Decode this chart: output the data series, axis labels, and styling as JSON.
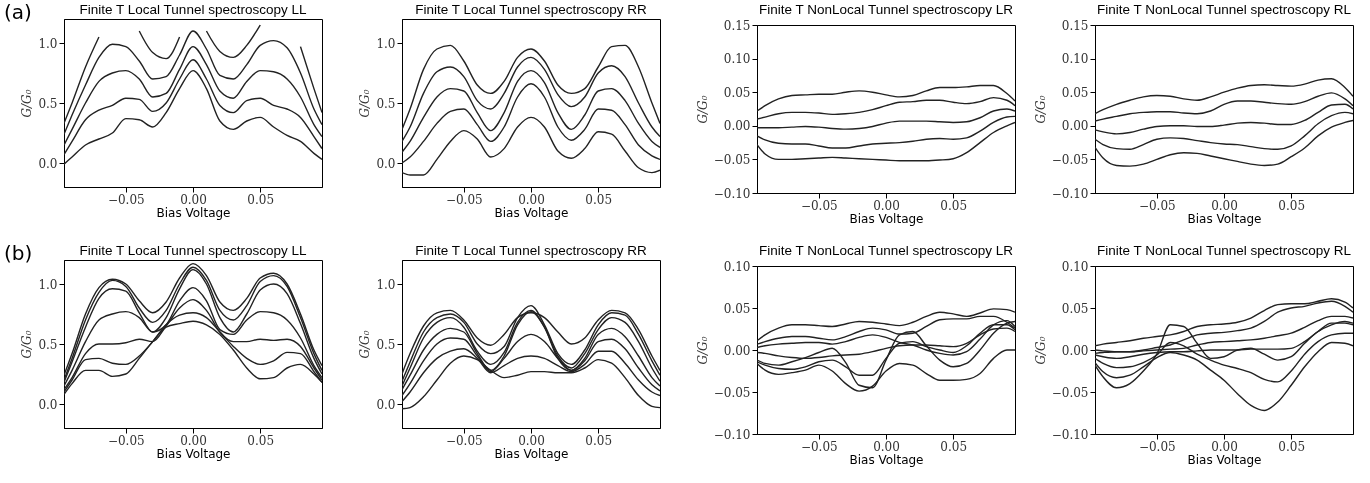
{
  "chart_data": [
    {
      "type": "line",
      "title": "Finite T Local Tunnel spectroscopy LL",
      "xlabel": "Bias Voltage",
      "ylabel": "G/G₀",
      "annotations": [
        "(a)"
      ],
      "x": [
        -0.096,
        -0.09,
        -0.08,
        -0.07,
        -0.06,
        -0.05,
        -0.04,
        -0.03,
        -0.02,
        -0.01,
        0,
        0.01,
        0.02,
        0.03,
        0.04,
        0.05,
        0.06,
        0.07,
        0.08,
        0.09,
        0.096
      ],
      "xlim": [
        -0.096,
        0.096
      ],
      "xticks": [
        {
          "value": -0.05,
          "label": "−0.05"
        },
        {
          "value": 0,
          "label": "0.00"
        },
        {
          "value": 0.05,
          "label": "0.05"
        }
      ],
      "ylim": [
        -0.2,
        1.2
      ],
      "yticks": [
        {
          "value": 0,
          "label": "0.0"
        },
        {
          "value": 0.5,
          "label": "0.5"
        },
        {
          "value": 1,
          "label": "1.0"
        }
      ],
      "series": [
        {
          "color": "#222222",
          "values": [
            0.33,
            0.5,
            0.8,
            1.05,
            null,
            null,
            1.1,
            0.92,
            0.87,
            1.05,
            null,
            1.1,
            0.93,
            0.88,
            0.98,
            1.15,
            null,
            null,
            0.97,
            0.62,
            0.42
          ]
        },
        {
          "color": "#222222",
          "values": [
            0.24,
            0.4,
            0.65,
            0.88,
            0.99,
            0.97,
            0.85,
            0.7,
            0.72,
            0.9,
            1.1,
            0.95,
            0.73,
            0.7,
            0.82,
            0.98,
            1.02,
            0.96,
            0.75,
            0.45,
            0.32
          ]
        },
        {
          "color": "#222222",
          "values": [
            0.15,
            0.28,
            0.5,
            0.68,
            0.75,
            0.77,
            0.7,
            0.55,
            0.58,
            0.78,
            0.97,
            0.82,
            0.6,
            0.54,
            0.68,
            0.77,
            0.76,
            0.7,
            0.55,
            0.32,
            0.22
          ]
        },
        {
          "color": "#222222",
          "values": [
            0.07,
            0.18,
            0.36,
            0.44,
            0.48,
            0.54,
            0.53,
            0.43,
            0.5,
            0.7,
            0.86,
            0.7,
            0.48,
            0.42,
            0.52,
            0.54,
            0.48,
            0.45,
            0.38,
            0.22,
            0.12
          ]
        },
        {
          "color": "#222222",
          "values": [
            -0.01,
            0.05,
            0.15,
            0.2,
            0.25,
            0.37,
            0.36,
            0.3,
            0.42,
            0.62,
            0.77,
            0.62,
            0.35,
            0.28,
            0.35,
            0.38,
            0.3,
            0.23,
            0.18,
            0.08,
            0.03
          ]
        }
      ]
    },
    {
      "type": "line",
      "title": "Finite T Local Tunnel spectroscopy RR",
      "xlabel": "Bias Voltage",
      "ylabel": "G/G₀",
      "x": [
        -0.096,
        -0.09,
        -0.08,
        -0.07,
        -0.06,
        -0.05,
        -0.04,
        -0.03,
        -0.02,
        -0.01,
        0,
        0.01,
        0.02,
        0.03,
        0.04,
        0.05,
        0.06,
        0.07,
        0.08,
        0.09,
        0.096
      ],
      "xlim": [
        -0.096,
        0.096
      ],
      "xticks": [
        {
          "value": -0.05,
          "label": "−0.05"
        },
        {
          "value": 0,
          "label": "0.00"
        },
        {
          "value": 0.05,
          "label": "0.05"
        }
      ],
      "ylim": [
        -0.2,
        1.2
      ],
      "yticks": [
        {
          "value": 0,
          "label": "0.0"
        },
        {
          "value": 0.5,
          "label": "0.5"
        },
        {
          "value": 1,
          "label": "1.0"
        }
      ],
      "series": [
        {
          "color": "#222222",
          "values": [
            0.28,
            0.45,
            0.78,
            0.95,
            0.98,
            0.85,
            0.65,
            0.58,
            0.68,
            0.88,
            0.95,
            0.85,
            0.65,
            0.58,
            0.62,
            0.8,
            0.97,
            0.98,
            0.8,
            0.5,
            0.33
          ]
        },
        {
          "color": "#222222",
          "values": [
            0.18,
            0.3,
            0.58,
            0.76,
            0.8,
            0.72,
            0.52,
            0.45,
            0.58,
            0.8,
            0.88,
            0.78,
            0.57,
            0.47,
            0.55,
            0.75,
            0.81,
            0.72,
            0.5,
            0.3,
            0.22
          ]
        },
        {
          "color": "#222222",
          "values": [
            0.09,
            0.18,
            0.38,
            0.55,
            0.62,
            0.6,
            0.42,
            0.27,
            0.42,
            0.68,
            0.77,
            0.67,
            0.42,
            0.28,
            0.4,
            0.6,
            0.62,
            0.52,
            0.33,
            0.18,
            0.13
          ]
        },
        {
          "color": "#222222",
          "values": [
            0.0,
            0.05,
            0.18,
            0.33,
            0.43,
            0.45,
            0.32,
            0.18,
            0.3,
            0.55,
            0.66,
            0.55,
            0.3,
            0.19,
            0.28,
            0.45,
            0.44,
            0.32,
            0.15,
            0.06,
            0.03
          ]
        },
        {
          "color": "#222222",
          "values": [
            -0.08,
            -0.1,
            -0.1,
            0.03,
            0.18,
            0.27,
            0.2,
            0.05,
            0.12,
            0.3,
            0.38,
            0.3,
            0.1,
            0.04,
            0.12,
            0.26,
            0.24,
            0.1,
            -0.04,
            -0.08,
            -0.06
          ]
        }
      ]
    },
    {
      "type": "line",
      "title": "Finite T NonLocal Tunnel spectroscopy LR",
      "xlabel": "Bias Voltage",
      "ylabel": "G/G₀",
      "x": [
        -0.096,
        -0.09,
        -0.08,
        -0.07,
        -0.06,
        -0.05,
        -0.04,
        -0.03,
        -0.02,
        -0.01,
        0,
        0.01,
        0.02,
        0.03,
        0.04,
        0.05,
        0.06,
        0.07,
        0.08,
        0.09,
        0.096
      ],
      "xlim": [
        -0.096,
        0.096
      ],
      "xticks": [
        {
          "value": -0.05,
          "label": "−0.05"
        },
        {
          "value": 0,
          "label": "0.00"
        },
        {
          "value": 0.05,
          "label": "0.05"
        }
      ],
      "ylim": [
        -0.1,
        0.15
      ],
      "yticks": [
        {
          "value": -0.1,
          "label": "−0.10"
        },
        {
          "value": -0.05,
          "label": "−0.05"
        },
        {
          "value": 0,
          "label": "0.00"
        },
        {
          "value": 0.05,
          "label": "0.05"
        },
        {
          "value": 0.1,
          "label": "0.10"
        },
        {
          "value": 0.15,
          "label": "0.15"
        }
      ],
      "series": [
        {
          "color": "#222222",
          "values": [
            0.022,
            0.03,
            0.04,
            0.045,
            0.046,
            0.047,
            0.047,
            0.05,
            0.052,
            0.05,
            0.046,
            0.043,
            0.045,
            0.052,
            0.057,
            0.057,
            0.058,
            0.06,
            0.06,
            0.048,
            0.037
          ]
        },
        {
          "color": "#222222",
          "values": [
            0.01,
            0.013,
            0.018,
            0.02,
            0.02,
            0.019,
            0.017,
            0.018,
            0.02,
            0.024,
            0.03,
            0.035,
            0.036,
            0.038,
            0.038,
            0.035,
            0.033,
            0.036,
            0.042,
            0.038,
            0.03
          ]
        },
        {
          "color": "#222222",
          "values": [
            -0.003,
            -0.003,
            -0.003,
            -0.002,
            -0.001,
            -0.002,
            -0.004,
            -0.005,
            -0.004,
            -0.001,
            0.004,
            0.007,
            0.007,
            0.007,
            0.006,
            0.005,
            0.006,
            0.012,
            0.022,
            0.025,
            0.022
          ]
        },
        {
          "color": "#222222",
          "values": [
            -0.015,
            -0.021,
            -0.026,
            -0.027,
            -0.027,
            -0.03,
            -0.033,
            -0.033,
            -0.03,
            -0.027,
            -0.026,
            -0.025,
            -0.023,
            -0.02,
            -0.019,
            -0.02,
            -0.018,
            -0.008,
            0.005,
            0.013,
            0.014
          ]
        },
        {
          "color": "#222222",
          "values": [
            -0.028,
            -0.042,
            -0.05,
            -0.05,
            -0.049,
            -0.048,
            -0.047,
            -0.048,
            -0.049,
            -0.05,
            -0.051,
            -0.052,
            -0.052,
            -0.052,
            -0.051,
            -0.049,
            -0.04,
            -0.025,
            -0.01,
            0.0,
            0.005
          ]
        }
      ]
    },
    {
      "type": "line",
      "title": "Finite T NonLocal Tunnel spectroscopy RL",
      "xlabel": "Bias Voltage",
      "ylabel": "G/G₀",
      "x": [
        -0.096,
        -0.09,
        -0.08,
        -0.07,
        -0.06,
        -0.05,
        -0.04,
        -0.03,
        -0.02,
        -0.01,
        0,
        0.01,
        0.02,
        0.03,
        0.04,
        0.05,
        0.06,
        0.07,
        0.08,
        0.09,
        0.096
      ],
      "xlim": [
        -0.096,
        0.096
      ],
      "xticks": [
        {
          "value": -0.05,
          "label": "−0.05"
        },
        {
          "value": 0,
          "label": "0.00"
        },
        {
          "value": 0.05,
          "label": "0.05"
        }
      ],
      "ylim": [
        -0.1,
        0.15
      ],
      "yticks": [
        {
          "value": -0.1,
          "label": "−0.10"
        },
        {
          "value": -0.05,
          "label": "−0.05"
        },
        {
          "value": 0,
          "label": "0.00"
        },
        {
          "value": 0.05,
          "label": "0.05"
        },
        {
          "value": 0.1,
          "label": "0.10"
        },
        {
          "value": 0.15,
          "label": "0.15"
        }
      ],
      "series": [
        {
          "color": "#222222",
          "values": [
            0.018,
            0.024,
            0.032,
            0.038,
            0.043,
            0.045,
            0.044,
            0.04,
            0.038,
            0.043,
            0.05,
            0.056,
            0.06,
            0.061,
            0.06,
            0.059,
            0.062,
            0.068,
            0.07,
            0.057,
            0.044
          ]
        },
        {
          "color": "#222222",
          "values": [
            0.007,
            0.01,
            0.014,
            0.018,
            0.02,
            0.021,
            0.021,
            0.019,
            0.018,
            0.022,
            0.032,
            0.037,
            0.037,
            0.035,
            0.033,
            0.032,
            0.036,
            0.044,
            0.049,
            0.04,
            0.03
          ]
        },
        {
          "color": "#222222",
          "values": [
            -0.006,
            -0.009,
            -0.012,
            -0.01,
            -0.005,
            -0.001,
            0.0,
            0.0,
            -0.001,
            -0.001,
            0.001,
            0.004,
            0.005,
            0.004,
            0.002,
            0.002,
            0.008,
            0.02,
            0.031,
            0.032,
            0.025
          ]
        },
        {
          "color": "#222222",
          "values": [
            -0.02,
            -0.028,
            -0.034,
            -0.035,
            -0.028,
            -0.02,
            -0.018,
            -0.019,
            -0.022,
            -0.025,
            -0.027,
            -0.028,
            -0.031,
            -0.034,
            -0.035,
            -0.03,
            -0.015,
            0.003,
            0.015,
            0.02,
            0.018
          ]
        },
        {
          "color": "#222222",
          "values": [
            -0.032,
            -0.048,
            -0.059,
            -0.06,
            -0.057,
            -0.05,
            -0.043,
            -0.04,
            -0.041,
            -0.045,
            -0.049,
            -0.053,
            -0.057,
            -0.059,
            -0.057,
            -0.046,
            -0.033,
            -0.015,
            -0.002,
            0.005,
            0.008
          ]
        }
      ]
    },
    {
      "type": "line",
      "title": "Finite T Local Tunnel spectroscopy LL",
      "xlabel": "Bias Voltage",
      "ylabel": "G/G₀",
      "annotations": [
        "(b)"
      ],
      "x": [
        -0.096,
        -0.09,
        -0.08,
        -0.07,
        -0.06,
        -0.05,
        -0.04,
        -0.03,
        -0.02,
        -0.01,
        0,
        0.01,
        0.02,
        0.03,
        0.04,
        0.05,
        0.06,
        0.07,
        0.08,
        0.09,
        0.096
      ],
      "xlim": [
        -0.096,
        0.096
      ],
      "xticks": [
        {
          "value": -0.05,
          "label": "−0.05"
        },
        {
          "value": 0,
          "label": "0.00"
        },
        {
          "value": 0.05,
          "label": "0.05"
        }
      ],
      "ylim": [
        -0.2,
        1.2
      ],
      "yticks": [
        {
          "value": 0,
          "label": "0.0"
        },
        {
          "value": 0.5,
          "label": "0.5"
        },
        {
          "value": 1,
          "label": "1.0"
        }
      ],
      "series": [
        {
          "color": "#222222",
          "values": [
            0.24,
            0.42,
            0.75,
            0.97,
            1.04,
            1.0,
            0.86,
            0.76,
            0.85,
            1.05,
            1.17,
            1.07,
            0.85,
            0.78,
            0.88,
            1.05,
            1.09,
            1.0,
            0.75,
            0.45,
            0.32
          ]
        },
        {
          "color": "#222222",
          "values": [
            0.2,
            0.38,
            0.7,
            0.93,
            1.03,
            0.98,
            0.8,
            0.68,
            0.78,
            1.0,
            1.14,
            1.03,
            0.78,
            0.7,
            0.82,
            1.02,
            1.07,
            0.98,
            0.72,
            0.42,
            0.28
          ]
        },
        {
          "color": "#222222",
          "values": [
            0.18,
            0.35,
            0.64,
            0.88,
            0.96,
            0.94,
            0.76,
            0.6,
            0.72,
            0.96,
            1.12,
            1.0,
            0.72,
            0.6,
            0.75,
            0.95,
            1.0,
            0.92,
            0.67,
            0.38,
            0.25
          ]
        },
        {
          "color": "#222222",
          "values": [
            0.15,
            0.28,
            0.52,
            0.7,
            0.75,
            0.77,
            0.72,
            0.6,
            0.66,
            0.86,
            0.97,
            0.86,
            0.62,
            0.58,
            0.7,
            0.77,
            0.76,
            0.7,
            0.55,
            0.32,
            0.22
          ]
        },
        {
          "color": "#222222",
          "values": [
            0.12,
            0.22,
            0.42,
            0.5,
            0.5,
            0.51,
            0.54,
            0.52,
            0.65,
            0.8,
            0.87,
            0.78,
            0.6,
            0.52,
            0.52,
            0.54,
            0.53,
            0.54,
            0.48,
            0.3,
            0.2
          ]
        },
        {
          "color": "#222222",
          "values": [
            0.1,
            0.2,
            0.37,
            0.38,
            0.34,
            0.33,
            0.4,
            0.52,
            0.66,
            0.74,
            0.76,
            0.72,
            0.6,
            0.48,
            0.38,
            0.33,
            0.36,
            0.43,
            0.42,
            0.27,
            0.18
          ]
        },
        {
          "color": "#222222",
          "values": [
            0.08,
            0.17,
            0.28,
            0.28,
            0.23,
            0.25,
            0.38,
            0.52,
            0.64,
            0.67,
            0.69,
            0.66,
            0.58,
            0.45,
            0.3,
            0.21,
            0.22,
            0.3,
            0.33,
            0.25,
            0.18
          ]
        }
      ]
    },
    {
      "type": "line",
      "title": "Finite T Local Tunnel spectroscopy RR",
      "xlabel": "Bias Voltage",
      "ylabel": "G/G₀",
      "x": [
        -0.096,
        -0.09,
        -0.08,
        -0.07,
        -0.06,
        -0.05,
        -0.04,
        -0.03,
        -0.02,
        -0.01,
        0,
        0.01,
        0.02,
        0.03,
        0.04,
        0.05,
        0.06,
        0.07,
        0.08,
        0.09,
        0.096
      ],
      "xlim": [
        -0.096,
        0.096
      ],
      "xticks": [
        {
          "value": -0.05,
          "label": "−0.05"
        },
        {
          "value": 0,
          "label": "0.00"
        },
        {
          "value": 0.05,
          "label": "0.05"
        }
      ],
      "ylim": [
        -0.2,
        1.2
      ],
      "yticks": [
        {
          "value": 0,
          "label": "0.0"
        },
        {
          "value": 0.5,
          "label": "0.5"
        },
        {
          "value": 1,
          "label": "1.0"
        }
      ],
      "series": [
        {
          "color": "#222222",
          "values": [
            0.25,
            0.42,
            0.65,
            0.76,
            0.78,
            0.7,
            0.55,
            0.49,
            0.58,
            0.72,
            0.76,
            0.72,
            0.6,
            0.5,
            0.55,
            0.7,
            0.78,
            0.76,
            0.62,
            0.4,
            0.28
          ]
        },
        {
          "color": "#222222",
          "values": [
            0.19,
            0.35,
            0.6,
            0.72,
            0.75,
            0.68,
            0.5,
            0.42,
            0.48,
            0.72,
            0.82,
            0.66,
            0.42,
            0.33,
            0.45,
            0.66,
            0.76,
            0.74,
            0.58,
            0.36,
            0.24
          ]
        },
        {
          "color": "#222222",
          "values": [
            0.15,
            0.3,
            0.55,
            0.68,
            0.72,
            0.64,
            0.44,
            0.33,
            0.43,
            0.68,
            0.78,
            0.64,
            0.4,
            0.3,
            0.42,
            0.62,
            0.72,
            0.68,
            0.52,
            0.3,
            0.19
          ]
        },
        {
          "color": "#222222",
          "values": [
            0.12,
            0.24,
            0.45,
            0.58,
            0.63,
            0.6,
            0.42,
            0.28,
            0.4,
            0.66,
            0.77,
            0.64,
            0.38,
            0.28,
            0.38,
            0.58,
            0.63,
            0.56,
            0.4,
            0.22,
            0.15
          ]
        },
        {
          "color": "#222222",
          "values": [
            0.07,
            0.17,
            0.36,
            0.5,
            0.55,
            0.54,
            0.4,
            0.27,
            0.38,
            0.52,
            0.58,
            0.52,
            0.38,
            0.28,
            0.36,
            0.52,
            0.54,
            0.46,
            0.3,
            0.16,
            0.11
          ]
        },
        {
          "color": "#222222",
          "values": [
            0.02,
            0.1,
            0.26,
            0.38,
            0.44,
            0.46,
            0.38,
            0.26,
            0.32,
            0.38,
            0.4,
            0.38,
            0.32,
            0.27,
            0.33,
            0.44,
            0.44,
            0.34,
            0.2,
            0.1,
            0.07
          ]
        },
        {
          "color": "#222222",
          "values": [
            -0.04,
            -0.03,
            0.06,
            0.2,
            0.34,
            0.4,
            0.37,
            0.28,
            0.22,
            0.24,
            0.27,
            0.27,
            0.26,
            0.26,
            0.3,
            0.37,
            0.34,
            0.22,
            0.07,
            -0.02,
            -0.03
          ]
        }
      ]
    },
    {
      "type": "line",
      "title": "Finite T NonLocal Tunnel spectroscopy LR",
      "xlabel": "Bias Voltage",
      "ylabel": "G/G₀",
      "x": [
        -0.096,
        -0.09,
        -0.08,
        -0.07,
        -0.06,
        -0.05,
        -0.04,
        -0.03,
        -0.02,
        -0.01,
        0,
        0.01,
        0.02,
        0.03,
        0.04,
        0.05,
        0.06,
        0.07,
        0.08,
        0.09,
        0.096
      ],
      "xlim": [
        -0.096,
        0.096
      ],
      "xticks": [
        {
          "value": -0.05,
          "label": "−0.05"
        },
        {
          "value": 0,
          "label": "0.00"
        },
        {
          "value": 0.05,
          "label": "0.05"
        }
      ],
      "ylim": [
        -0.1,
        0.1
      ],
      "yticks": [
        {
          "value": -0.1,
          "label": "−0.10"
        },
        {
          "value": -0.05,
          "label": "−0.05"
        },
        {
          "value": 0,
          "label": "0.00"
        },
        {
          "value": 0.05,
          "label": "0.05"
        },
        {
          "value": 0.1,
          "label": "0.10"
        }
      ],
      "series": [
        {
          "color": "#222222",
          "values": [
            0.011,
            0.018,
            0.026,
            0.03,
            0.03,
            0.029,
            0.028,
            0.031,
            0.034,
            0.033,
            0.031,
            0.029,
            0.033,
            0.04,
            0.045,
            0.043,
            0.04,
            0.044,
            0.049,
            0.048,
            0.045
          ]
        },
        {
          "color": "#222222",
          "values": [
            0.007,
            0.01,
            0.014,
            0.016,
            0.016,
            0.014,
            0.012,
            0.016,
            0.022,
            0.026,
            0.024,
            0.019,
            0.02,
            0.028,
            0.036,
            0.037,
            0.037,
            0.04,
            0.04,
            0.033,
            0.026
          ]
        },
        {
          "color": "#222222",
          "values": [
            0.003,
            0.005,
            0.007,
            0.008,
            0.009,
            0.009,
            0.007,
            0.01,
            0.015,
            0.018,
            0.015,
            0.009,
            0.006,
            0.0,
            -0.004,
            -0.006,
            -0.002,
            0.013,
            0.03,
            0.035,
            0.028
          ]
        },
        {
          "color": "#222222",
          "values": [
            -0.003,
            -0.004,
            -0.007,
            -0.009,
            -0.01,
            -0.009,
            -0.007,
            -0.006,
            -0.005,
            -0.002,
            0.002,
            0.005,
            0.006,
            0.006,
            0.005,
            0.004,
            0.008,
            0.018,
            0.025,
            0.026,
            0.022
          ]
        },
        {
          "color": "#222222",
          "values": [
            -0.012,
            -0.016,
            -0.018,
            -0.014,
            -0.009,
            -0.003,
            0.002,
            -0.015,
            -0.042,
            -0.045,
            -0.012,
            0.018,
            0.022,
            0.005,
            -0.012,
            -0.02,
            -0.016,
            0.0,
            0.02,
            0.032,
            0.034
          ]
        },
        {
          "color": "#222222",
          "values": [
            -0.014,
            -0.018,
            -0.022,
            -0.023,
            -0.02,
            -0.014,
            -0.012,
            -0.02,
            -0.03,
            -0.03,
            -0.01,
            0.008,
            0.01,
            0.004,
            0.0,
            -0.003,
            0.005,
            0.02,
            0.03,
            0.03,
            0.024
          ]
        },
        {
          "color": "#222222",
          "values": [
            -0.016,
            -0.024,
            -0.029,
            -0.027,
            -0.024,
            -0.018,
            -0.025,
            -0.04,
            -0.049,
            -0.043,
            -0.025,
            -0.016,
            -0.018,
            -0.028,
            -0.036,
            -0.036,
            -0.035,
            -0.028,
            -0.01,
            0.0,
            0.0
          ]
        }
      ]
    },
    {
      "type": "line",
      "title": "Finite T NonLocal Tunnel spectroscopy RL",
      "xlabel": "Bias Voltage",
      "ylabel": "G/G₀",
      "x": [
        -0.096,
        -0.09,
        -0.08,
        -0.07,
        -0.06,
        -0.05,
        -0.04,
        -0.03,
        -0.02,
        -0.01,
        0,
        0.01,
        0.02,
        0.03,
        0.04,
        0.05,
        0.06,
        0.07,
        0.08,
        0.09,
        0.096
      ],
      "xlim": [
        -0.096,
        0.096
      ],
      "xticks": [
        {
          "value": -0.05,
          "label": "−0.05"
        },
        {
          "value": 0,
          "label": "0.00"
        },
        {
          "value": 0.05,
          "label": "0.05"
        }
      ],
      "ylim": [
        -0.1,
        0.1
      ],
      "yticks": [
        {
          "value": -0.1,
          "label": "−0.10"
        },
        {
          "value": -0.05,
          "label": "−0.05"
        },
        {
          "value": 0,
          "label": "0.00"
        },
        {
          "value": 0.05,
          "label": "0.05"
        },
        {
          "value": 0.1,
          "label": "0.10"
        }
      ],
      "series": [
        {
          "color": "#222222",
          "values": [
            0.005,
            0.007,
            0.009,
            0.011,
            0.014,
            0.016,
            0.018,
            0.022,
            0.028,
            0.03,
            0.031,
            0.033,
            0.038,
            0.047,
            0.054,
            0.055,
            0.055,
            0.058,
            0.061,
            0.057,
            0.05
          ]
        },
        {
          "color": "#222222",
          "values": [
            0.0,
            -0.001,
            -0.002,
            -0.002,
            0.0,
            0.003,
            0.006,
            0.012,
            0.018,
            0.02,
            0.021,
            0.023,
            0.026,
            0.034,
            0.045,
            0.05,
            0.052,
            0.056,
            0.058,
            0.052,
            0.045
          ]
        },
        {
          "color": "#222222",
          "values": [
            -0.004,
            -0.003,
            -0.002,
            -0.002,
            -0.001,
            0.0,
            0.001,
            0.002,
            0.006,
            0.009,
            0.01,
            0.011,
            0.012,
            0.014,
            0.017,
            0.02,
            0.027,
            0.035,
            0.04,
            0.04,
            0.038
          ]
        },
        {
          "color": "#222222",
          "values": [
            -0.006,
            -0.008,
            -0.01,
            -0.008,
            -0.005,
            -0.003,
            -0.002,
            -0.002,
            -0.001,
            0.0,
            0.0,
            0.0,
            0.001,
            0.001,
            0.001,
            0.002,
            0.01,
            0.022,
            0.032,
            0.032,
            0.03
          ]
        },
        {
          "color": "#222222",
          "values": [
            -0.018,
            -0.032,
            -0.045,
            -0.04,
            -0.025,
            -0.005,
            0.03,
            0.028,
            0.008,
            -0.01,
            -0.008,
            0.0,
            0.002,
            -0.005,
            -0.012,
            -0.008,
            0.008,
            0.022,
            0.03,
            0.034,
            0.032
          ]
        },
        {
          "color": "#222222",
          "values": [
            -0.01,
            -0.016,
            -0.021,
            -0.02,
            -0.015,
            -0.006,
            0.009,
            0.005,
            -0.005,
            -0.012,
            -0.018,
            -0.022,
            -0.027,
            -0.035,
            -0.038,
            -0.025,
            -0.005,
            0.01,
            0.018,
            0.02,
            0.02
          ]
        },
        {
          "color": "#222222",
          "values": [
            -0.015,
            -0.026,
            -0.033,
            -0.03,
            -0.02,
            -0.009,
            -0.003,
            -0.006,
            -0.012,
            -0.024,
            -0.036,
            -0.052,
            -0.066,
            -0.072,
            -0.062,
            -0.042,
            -0.02,
            -0.002,
            0.009,
            0.008,
            0.005
          ]
        }
      ]
    }
  ]
}
